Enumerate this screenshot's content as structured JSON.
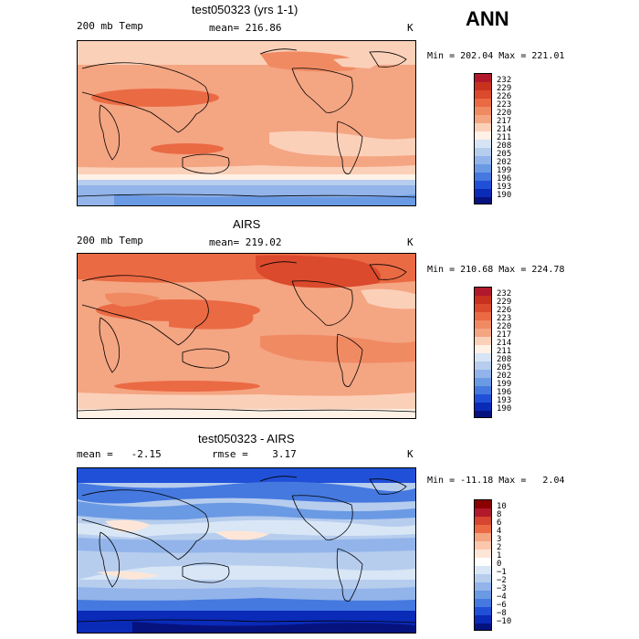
{
  "season": "ANN",
  "panels": [
    {
      "id": "model",
      "title": "test050323 (yrs 1-1)",
      "field": "200 mb Temp",
      "stat": "mean= 216.86",
      "units": "K",
      "minmax": "Min = 202.04 Max = 221.01",
      "levels": [
        "232",
        "229",
        "226",
        "223",
        "220",
        "217",
        "214",
        "211",
        "208",
        "205",
        "202",
        "199",
        "196",
        "193",
        "190"
      ],
      "colors": [
        "#b2182b",
        "#c9311f",
        "#db4a2c",
        "#ea6a44",
        "#f08a62",
        "#f4a582",
        "#fbd0b9",
        "#fff1e6",
        "#d6e4f5",
        "#b7cdee",
        "#92b4ea",
        "#6b9ae4",
        "#4579df",
        "#2150d8",
        "#0a2ab8",
        "#06127e"
      ]
    },
    {
      "id": "obs",
      "title": "AIRS",
      "field": "200 mb Temp",
      "stat": "mean= 219.02",
      "units": "K",
      "minmax": "Min = 210.68 Max = 224.78",
      "levels": [
        "232",
        "229",
        "226",
        "223",
        "220",
        "217",
        "214",
        "211",
        "208",
        "205",
        "202",
        "199",
        "196",
        "193",
        "190"
      ],
      "colors": [
        "#b2182b",
        "#c9311f",
        "#db4a2c",
        "#ea6a44",
        "#f08a62",
        "#f4a582",
        "#fbd0b9",
        "#fff1e6",
        "#d6e4f5",
        "#b7cdee",
        "#92b4ea",
        "#6b9ae4",
        "#4579df",
        "#2150d8",
        "#0a2ab8",
        "#06127e"
      ]
    },
    {
      "id": "diff",
      "title": "test050323 - AIRS",
      "stat": "mean =   -2.15",
      "stat2": "rmse =    3.17",
      "units": "K",
      "minmax": "Min = -11.18 Max =   2.04",
      "levels": [
        "10",
        "8",
        "6",
        "4",
        "3",
        "2",
        "1",
        "0",
        "−1",
        "−2",
        "−3",
        "−4",
        "−6",
        "−8",
        "−10"
      ],
      "colors": [
        "#8b0000",
        "#b2182b",
        "#d6452f",
        "#ea6a44",
        "#f4a582",
        "#fbc8ad",
        "#fde6d8",
        "#ffffff",
        "#d8e6f6",
        "#b7cdee",
        "#92b4ea",
        "#6b9ae4",
        "#4579df",
        "#2150d8",
        "#0a2ab8",
        "#06127e"
      ]
    }
  ]
}
